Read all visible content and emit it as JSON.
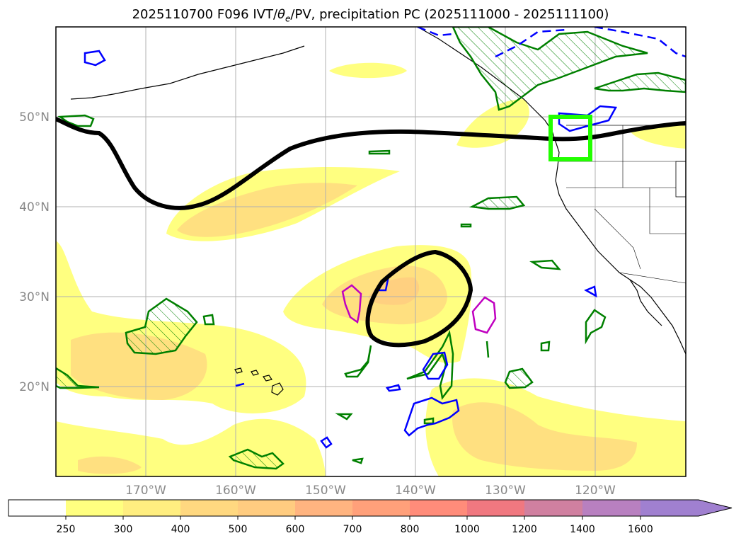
{
  "title": {
    "init": "2025110700",
    "forecast": "F096",
    "fields_prefix": "IVT/",
    "theta": "θ",
    "theta_sub": "e",
    "fields_suffix": "/PV, precipitation PC (2025111000 - 2025111100)"
  },
  "map": {
    "projection": "PlateCarree",
    "extent_lon": [
      -180,
      -110
    ],
    "extent_lat": [
      10,
      60
    ],
    "lat_labels": [
      {
        "value": 50,
        "label": "50°N"
      },
      {
        "value": 40,
        "label": "40°N"
      },
      {
        "value": 30,
        "label": "30°N"
      },
      {
        "value": 20,
        "label": "20°N"
      }
    ],
    "lon_labels": [
      {
        "value": -170,
        "label": "170°W"
      },
      {
        "value": -160,
        "label": "160°W"
      },
      {
        "value": -150,
        "label": "150°W"
      },
      {
        "value": -140,
        "label": "140°W"
      },
      {
        "value": -130,
        "label": "130°W"
      },
      {
        "value": -120,
        "label": "120°W"
      }
    ],
    "highlight_box": {
      "lon_min": -125,
      "lon_max": -120.5,
      "lat_min": 45,
      "lat_max": 50,
      "color": "#22ff00"
    }
  },
  "colorbar": {
    "ticks": [
      "250",
      "300",
      "400",
      "500",
      "600",
      "700",
      "800",
      "1000",
      "1200",
      "1400",
      "1600"
    ],
    "colors": [
      "#ffff80",
      "#ffee80",
      "#ffd880",
      "#ffcc80",
      "#ffb480",
      "#ffa07a",
      "#ff8c7a",
      "#f07880",
      "#d080a0",
      "#b880c0",
      "#a080d0"
    ],
    "under_color": "#ffffff"
  },
  "colors": {
    "ivt_fill_low": "#ffff80",
    "ivt_fill_mid": "#ffe080",
    "ivt_fill_high": "#ffd080",
    "pv_contour": "#000000",
    "theta_pos": "#008000",
    "theta_neg": "#0000ff",
    "magenta": "#c000c0",
    "coast": "#000000"
  }
}
